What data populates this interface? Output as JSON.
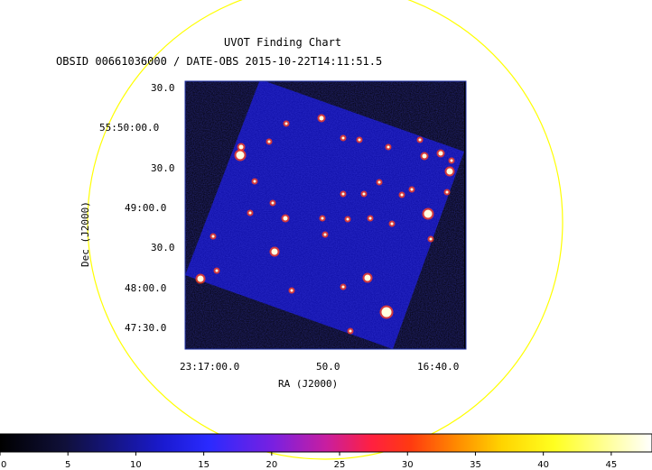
{
  "header": {
    "title": "UVOT Finding Chart",
    "subtitle": "OBSID 00661036000 / DATE-OBS 2015-10-22T14:11:51.5"
  },
  "axes": {
    "xlabel": "RA (J2000)",
    "ylabel": "Dec (J2000)",
    "ra_ticks": [
      "23:17:00.0",
      "50.0",
      "16:40.0"
    ],
    "dec_ticks": [
      "30.0",
      "55:50:00.0",
      "30.0",
      "49:00.0",
      "30.0",
      "48:00.0",
      "47:30.0"
    ]
  },
  "colorbar": {
    "ticks": [
      "0",
      "5",
      "10",
      "15",
      "20",
      "25",
      "30",
      "35",
      "40",
      "45"
    ],
    "range": [
      0,
      48
    ]
  },
  "colors": {
    "circle": "#ffff00",
    "frame": "#2233aa",
    "background": "#ffffff",
    "sky": "#0a0aa0"
  }
}
